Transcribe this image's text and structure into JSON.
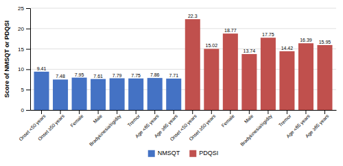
{
  "chart_data": {
    "type": "bar",
    "ylabel": "Score of NMSQT or PDQSI",
    "categories": [
      "Onset <50 years",
      "Onset ≥50 years",
      "Female",
      "Male",
      "Bradykinesia/rigidity",
      "Tremor",
      "Age <65 years",
      "Age ≥65 years",
      "Onset <50 years",
      "Onset ≥50 years",
      "Female",
      "Male",
      "Bradykinesia/rigidity",
      "Tremor",
      "Age <65 years",
      "Age ≥65 years"
    ],
    "series": [
      {
        "name": "NMSQT",
        "color": "#4472C4",
        "values": [
          9.41,
          7.48,
          7.95,
          7.61,
          7.79,
          7.75,
          7.86,
          7.71,
          null,
          null,
          null,
          null,
          null,
          null,
          null,
          null
        ]
      },
      {
        "name": "PDQSI",
        "color": "#C0504D",
        "values": [
          null,
          null,
          null,
          null,
          null,
          null,
          null,
          null,
          22.3,
          15.02,
          18.77,
          13.74,
          17.75,
          14.42,
          16.39,
          15.95
        ]
      }
    ],
    "ylim": [
      0,
      25
    ],
    "yticks": [
      0,
      5,
      10,
      15,
      20,
      25
    ],
    "grid": true,
    "data_labels": true,
    "legend": "bottom"
  }
}
